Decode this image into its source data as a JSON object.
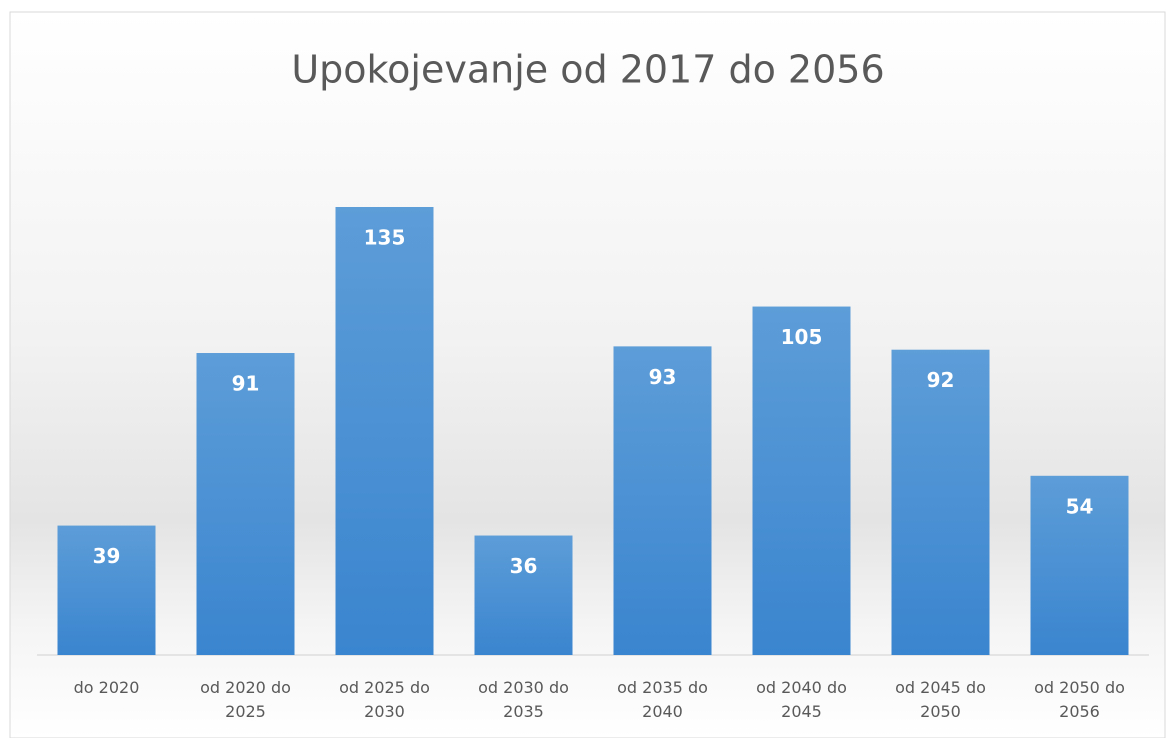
{
  "chart_data": {
    "type": "bar",
    "title": "Upokojevanje od 2017 do 2056",
    "categories": [
      "do 2020",
      "od 2020 do 2025",
      "od 2025 do 2030",
      "od 2030 do 2035",
      "od 2035 do 2040",
      "od 2040 do 2045",
      "od 2045 do 2050",
      "od 2050 do 2056"
    ],
    "values": [
      39,
      91,
      135,
      36,
      93,
      105,
      92,
      54
    ],
    "color": "#4a8fd6",
    "grid": false
  }
}
